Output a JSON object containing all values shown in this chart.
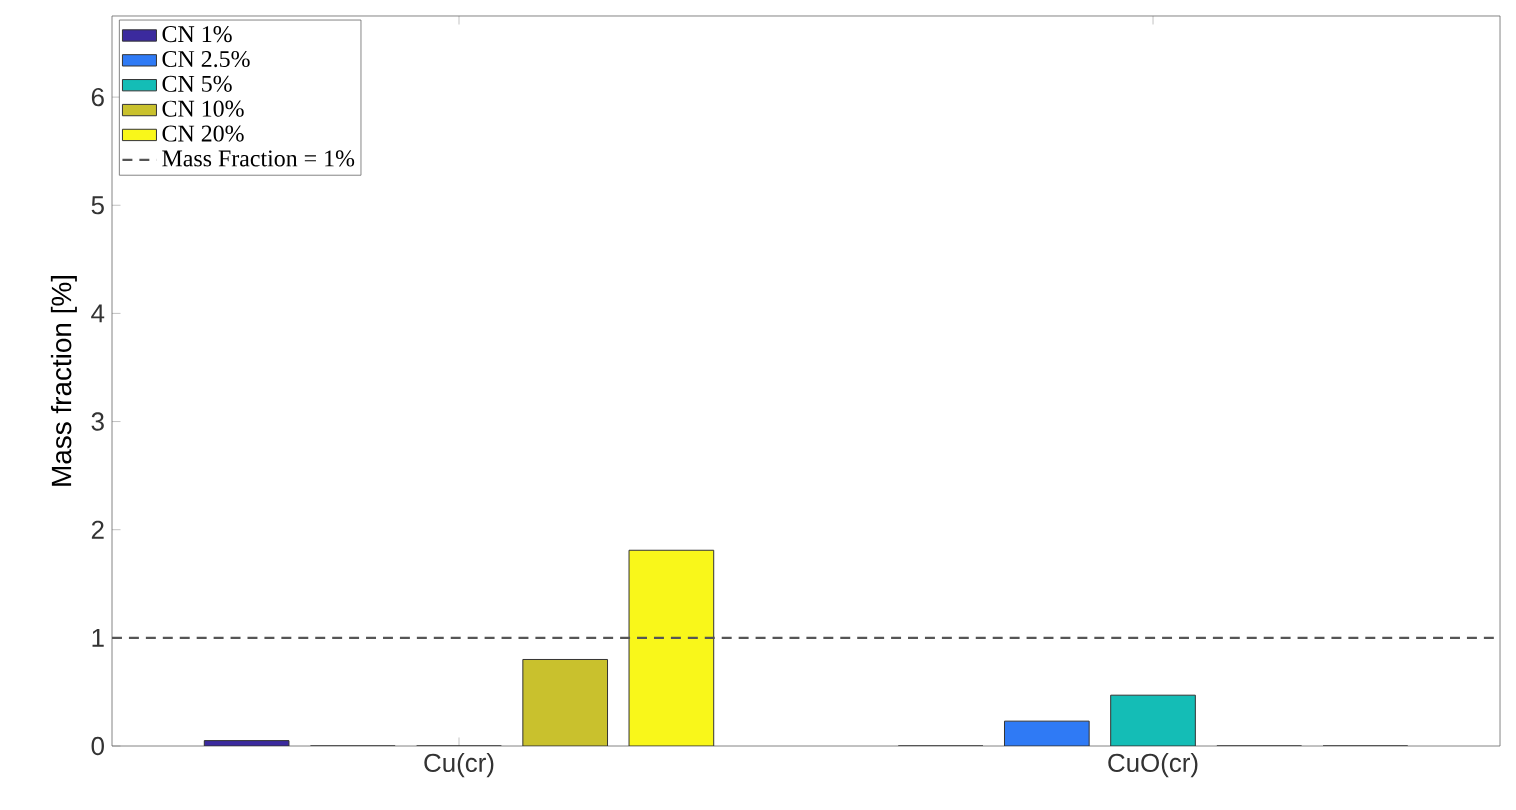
{
  "chart_data": {
    "type": "bar",
    "ylabel": "Mass fraction [%]",
    "categories": [
      "Cu(cr)",
      "CuO(cr)"
    ],
    "series": [
      {
        "name": "CN 1%",
        "color": "#3b2a9e",
        "values": [
          0.05,
          0
        ]
      },
      {
        "name": "CN 2.5%",
        "color": "#2f7af5",
        "values": [
          0,
          0.23
        ]
      },
      {
        "name": "CN 5%",
        "color": "#14bdb6",
        "values": [
          0,
          0.47
        ]
      },
      {
        "name": "CN 10%",
        "color": "#c9c12d",
        "values": [
          0.8,
          0
        ]
      },
      {
        "name": "CN 20%",
        "color": "#f9f71a",
        "values": [
          1.81,
          0
        ]
      }
    ],
    "ylim": [
      0,
      6.75
    ],
    "yticks": [
      0,
      1,
      2,
      3,
      4,
      5,
      6
    ],
    "ref_lines": [
      {
        "axis": "y",
        "value": 1,
        "label": "Mass Fraction = 1%",
        "color": "#555555",
        "line_style": "dashed"
      }
    ],
    "legend": "top left",
    "grid": false
  }
}
